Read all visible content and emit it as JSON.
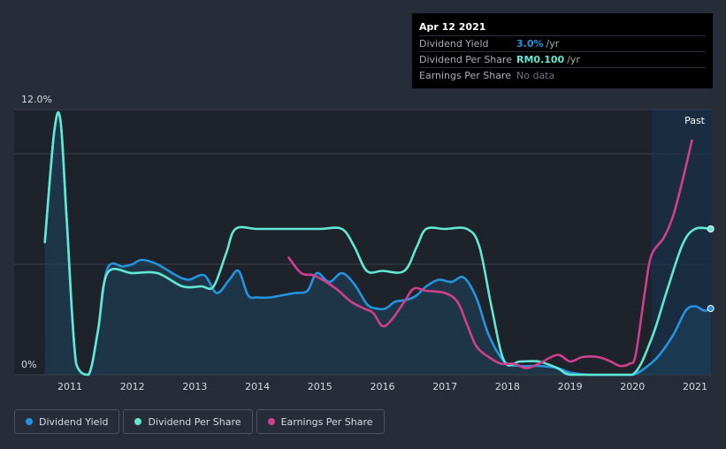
{
  "tooltip": {
    "date": "Apr 12 2021",
    "dividend_yield": {
      "label": "Dividend Yield",
      "value": "3.0%",
      "unit": "/yr"
    },
    "dividend_per_share": {
      "label": "Dividend Per Share",
      "value": "RM0.100",
      "unit": "/yr"
    },
    "earnings_per_share": {
      "label": "Earnings Per Share",
      "value": "No data"
    }
  },
  "past_label": "Past",
  "legend": [
    {
      "label": "Dividend Yield",
      "color": "#2394df"
    },
    {
      "label": "Dividend Per Share",
      "color": "#61e8d2"
    },
    {
      "label": "Earnings Per Share",
      "color": "#cf3f8c"
    }
  ],
  "colors": {
    "background": "#262c38",
    "dividend_yield": "#2394df",
    "dividend_per_share": "#61e8d2",
    "earnings_per_share": "#cf3f8c",
    "area_fill": "#1f4560"
  },
  "chart_data": {
    "type": "line",
    "title": "",
    "xlabel": "",
    "ylabel": "",
    "ylim": [
      0,
      12
    ],
    "y_tick_labels": [
      "12.0%",
      "0%"
    ],
    "xlim": [
      2010.6,
      2021.3
    ],
    "x_tick_labels": [
      "2011",
      "2012",
      "2013",
      "2014",
      "2015",
      "2016",
      "2017",
      "2018",
      "2019",
      "2020",
      "2021"
    ],
    "forecast_shade_from": 2020.3,
    "grid": true,
    "series": [
      {
        "name": "Dividend Yield",
        "key": "dividend_yield",
        "fill_area": true,
        "points": [
          [
            2010.6,
            6.0
          ],
          [
            2010.75,
            11.0
          ],
          [
            2010.85,
            11.5
          ],
          [
            2010.95,
            7.0
          ],
          [
            2011.1,
            0.5
          ],
          [
            2011.3,
            0.0
          ],
          [
            2011.45,
            2.0
          ],
          [
            2011.6,
            4.8
          ],
          [
            2011.85,
            4.9
          ],
          [
            2012.0,
            5.0
          ],
          [
            2012.15,
            5.2
          ],
          [
            2012.4,
            5.0
          ],
          [
            2012.7,
            4.5
          ],
          [
            2012.9,
            4.3
          ],
          [
            2013.15,
            4.5
          ],
          [
            2013.35,
            3.7
          ],
          [
            2013.55,
            4.3
          ],
          [
            2013.7,
            4.7
          ],
          [
            2013.85,
            3.6
          ],
          [
            2014.0,
            3.5
          ],
          [
            2014.2,
            3.5
          ],
          [
            2014.4,
            3.6
          ],
          [
            2014.6,
            3.7
          ],
          [
            2014.8,
            3.8
          ],
          [
            2014.95,
            4.6
          ],
          [
            2015.15,
            4.2
          ],
          [
            2015.35,
            4.6
          ],
          [
            2015.55,
            4.1
          ],
          [
            2015.75,
            3.2
          ],
          [
            2015.9,
            3.0
          ],
          [
            2016.05,
            3.0
          ],
          [
            2016.2,
            3.3
          ],
          [
            2016.4,
            3.4
          ],
          [
            2016.55,
            3.6
          ],
          [
            2016.7,
            4.0
          ],
          [
            2016.9,
            4.3
          ],
          [
            2017.1,
            4.2
          ],
          [
            2017.3,
            4.4
          ],
          [
            2017.5,
            3.5
          ],
          [
            2017.7,
            1.8
          ],
          [
            2017.95,
            0.6
          ],
          [
            2018.2,
            0.4
          ],
          [
            2018.5,
            0.4
          ],
          [
            2018.8,
            0.3
          ],
          [
            2019.0,
            0.1
          ],
          [
            2019.3,
            0.0
          ],
          [
            2019.6,
            0.0
          ],
          [
            2019.8,
            0.0
          ],
          [
            2020.0,
            0.0
          ],
          [
            2020.15,
            0.2
          ],
          [
            2020.4,
            0.8
          ],
          [
            2020.65,
            1.8
          ],
          [
            2020.85,
            2.9
          ],
          [
            2021.0,
            3.1
          ],
          [
            2021.15,
            2.9
          ],
          [
            2021.25,
            3.0
          ]
        ]
      },
      {
        "name": "Dividend Per Share",
        "key": "dividend_per_share",
        "fill_area": false,
        "points": [
          [
            2010.6,
            6.0
          ],
          [
            2010.75,
            11.0
          ],
          [
            2010.85,
            11.5
          ],
          [
            2010.95,
            7.0
          ],
          [
            2011.1,
            0.5
          ],
          [
            2011.3,
            0.0
          ],
          [
            2011.45,
            2.0
          ],
          [
            2011.6,
            4.6
          ],
          [
            2012.0,
            4.6
          ],
          [
            2012.4,
            4.6
          ],
          [
            2012.8,
            4.0
          ],
          [
            2013.1,
            4.0
          ],
          [
            2013.3,
            4.0
          ],
          [
            2013.5,
            5.5
          ],
          [
            2013.65,
            6.6
          ],
          [
            2014.0,
            6.6
          ],
          [
            2014.5,
            6.6
          ],
          [
            2015.0,
            6.6
          ],
          [
            2015.35,
            6.6
          ],
          [
            2015.55,
            5.8
          ],
          [
            2015.75,
            4.7
          ],
          [
            2016.0,
            4.7
          ],
          [
            2016.35,
            4.7
          ],
          [
            2016.55,
            5.8
          ],
          [
            2016.7,
            6.6
          ],
          [
            2017.0,
            6.6
          ],
          [
            2017.35,
            6.6
          ],
          [
            2017.55,
            5.8
          ],
          [
            2017.75,
            3.0
          ],
          [
            2017.95,
            0.6
          ],
          [
            2018.2,
            0.6
          ],
          [
            2018.5,
            0.6
          ],
          [
            2018.8,
            0.3
          ],
          [
            2019.0,
            0.0
          ],
          [
            2019.5,
            0.0
          ],
          [
            2020.0,
            0.0
          ],
          [
            2020.3,
            1.6
          ],
          [
            2020.55,
            3.8
          ],
          [
            2020.8,
            5.9
          ],
          [
            2021.0,
            6.6
          ],
          [
            2021.25,
            6.6
          ]
        ]
      },
      {
        "name": "Earnings Per Share",
        "key": "earnings_per_share",
        "fill_area": false,
        "points": [
          [
            2014.5,
            5.3
          ],
          [
            2014.7,
            4.6
          ],
          [
            2014.9,
            4.5
          ],
          [
            2015.1,
            4.2
          ],
          [
            2015.3,
            3.8
          ],
          [
            2015.5,
            3.3
          ],
          [
            2015.7,
            3.0
          ],
          [
            2015.85,
            2.8
          ],
          [
            2016.0,
            2.2
          ],
          [
            2016.15,
            2.5
          ],
          [
            2016.35,
            3.3
          ],
          [
            2016.5,
            3.9
          ],
          [
            2016.7,
            3.8
          ],
          [
            2017.0,
            3.7
          ],
          [
            2017.2,
            3.3
          ],
          [
            2017.35,
            2.3
          ],
          [
            2017.5,
            1.3
          ],
          [
            2017.7,
            0.8
          ],
          [
            2017.9,
            0.5
          ],
          [
            2018.1,
            0.5
          ],
          [
            2018.3,
            0.3
          ],
          [
            2018.5,
            0.5
          ],
          [
            2018.8,
            0.9
          ],
          [
            2019.0,
            0.6
          ],
          [
            2019.2,
            0.8
          ],
          [
            2019.45,
            0.8
          ],
          [
            2019.65,
            0.6
          ],
          [
            2019.8,
            0.4
          ],
          [
            2019.95,
            0.5
          ],
          [
            2020.05,
            0.9
          ],
          [
            2020.2,
            3.8
          ],
          [
            2020.3,
            5.4
          ],
          [
            2020.5,
            6.2
          ],
          [
            2020.65,
            7.2
          ],
          [
            2020.8,
            8.8
          ],
          [
            2020.95,
            10.6
          ]
        ]
      }
    ],
    "end_markers": [
      "dividend_yield",
      "dividend_per_share"
    ]
  }
}
